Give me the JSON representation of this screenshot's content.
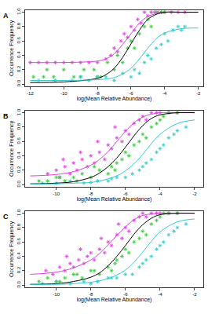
{
  "chart_data": [
    {
      "type": "scatter",
      "title": "A",
      "x_label": "log(Mean Relative Abundance)",
      "y_label": "Occurrence Frequency",
      "xlim": [
        -12.3,
        -1.7
      ],
      "ylim": [
        -0.03,
        1.03
      ],
      "xticks": [
        -12,
        -10,
        -8,
        -6,
        -4,
        -2
      ],
      "yticks": [
        {
          "value": 0,
          "label": "0.0"
        },
        0.2,
        0.4,
        0.6,
        0.8,
        {
          "value": 1,
          "label": "1.0"
        }
      ],
      "series": [
        {
          "type": "scatter",
          "color": "#e040e0",
          "marker": "asterisk",
          "x": [
            -12,
            -11.5,
            -11,
            -10.5,
            -10,
            -9.5,
            -9,
            -8.5,
            -8,
            -7.5,
            -7.2,
            -7,
            -6.8,
            -6.6,
            -6.4,
            -6.2,
            -6,
            -5.8,
            -5.6,
            -5.4,
            -5.2,
            -5,
            -4.8,
            -4.6,
            -4.4,
            -4.2,
            -4,
            -3.6,
            -3.2,
            -2.8
          ],
          "values": [
            0.3,
            0.3,
            0.3,
            0.3,
            0.3,
            0.3,
            0.3,
            0.3,
            0.3,
            0.35,
            0.4,
            0.5,
            0.45,
            0.6,
            0.7,
            0.65,
            0.8,
            0.75,
            0.9,
            0.85,
            1,
            0.95,
            1,
            1,
            1,
            1,
            1,
            1,
            1,
            1
          ]
        },
        {
          "type": "scatter",
          "color": "#33cc33",
          "marker": "asterisk",
          "x": [
            -11.8,
            -11.2,
            -10.6,
            -10,
            -9.4,
            -8.8,
            -8.2,
            -7.8,
            -7.4,
            -7,
            -6.8,
            -6.5,
            -6.2,
            -6,
            -5.8,
            -5.5,
            -5.2,
            -5,
            -4.8,
            -4.5,
            -4.2,
            -4,
            -11,
            -9,
            -8
          ],
          "values": [
            0.1,
            0.1,
            0.1,
            0.2,
            0.1,
            0.2,
            0.2,
            0.1,
            0.3,
            0.2,
            0.4,
            0.3,
            0.5,
            0.6,
            0.5,
            0.7,
            0.8,
            0.9,
            0.8,
            1,
            1,
            1,
            0.2,
            0.1,
            0.1
          ]
        },
        {
          "type": "scatter",
          "color": "#33cccc",
          "marker": "asterisk",
          "x": [
            -11.5,
            -10.5,
            -9.5,
            -8.5,
            -7.5,
            -7,
            -6.5,
            -6,
            -5.8,
            -5.5,
            -5.2,
            -5,
            -4.8,
            -4.5,
            -4.2,
            -4,
            -3.8,
            -3.5,
            -3.2,
            -3,
            -2.8,
            -8,
            -9
          ],
          "values": [
            0.05,
            0.05,
            0.05,
            0.05,
            0.1,
            0.05,
            0.15,
            0.1,
            0.2,
            0.15,
            0.3,
            0.4,
            0.35,
            0.5,
            0.55,
            0.7,
            0.6,
            0.75,
            0.8,
            0.75,
            0.8,
            0.1,
            0.1
          ]
        },
        {
          "type": "line",
          "color": "#e040e0",
          "line_style": "solid",
          "x": [
            -12,
            -10,
            -8,
            -7.5,
            -7,
            -6.5,
            -6,
            -5.5,
            -5,
            -4.5,
            -4,
            -3,
            -2
          ],
          "values": [
            0.3,
            0.3,
            0.32,
            0.35,
            0.42,
            0.55,
            0.7,
            0.85,
            0.94,
            0.98,
            1,
            1,
            1
          ]
        },
        {
          "type": "line",
          "color": "#000000",
          "line_style": "solid",
          "x": [
            -12,
            -10,
            -8,
            -7.5,
            -7,
            -6.5,
            -6,
            -5.5,
            -5,
            -4.5,
            -4,
            -3,
            -2
          ],
          "values": [
            0.02,
            0.03,
            0.08,
            0.13,
            0.22,
            0.37,
            0.56,
            0.75,
            0.9,
            0.97,
            1,
            1,
            1
          ]
        },
        {
          "type": "line",
          "color": "#33cccc",
          "line_style": "solid",
          "x": [
            -12,
            -10,
            -8,
            -7.5,
            -7,
            -6.5,
            -6,
            -5.5,
            -5,
            -4.5,
            -4,
            -3,
            -2
          ],
          "values": [
            0.05,
            0.05,
            0.06,
            0.07,
            0.09,
            0.14,
            0.22,
            0.35,
            0.5,
            0.63,
            0.71,
            0.77,
            0.78
          ]
        }
      ]
    },
    {
      "type": "scatter",
      "title": "B",
      "x_label": "log(Mean Relative Abundance)",
      "y_label": "Occurrence Frequency",
      "xlim": [
        -11.8,
        -1.5
      ],
      "ylim": [
        -0.03,
        1.03
      ],
      "xticks": [
        -10,
        -8,
        -6,
        -4,
        -2
      ],
      "yticks": [
        {
          "value": 0,
          "label": "0.0"
        },
        0.2,
        0.4,
        0.6,
        0.8,
        {
          "value": 1,
          "label": "1.0"
        }
      ],
      "series": [
        {
          "type": "scatter",
          "color": "#e040e0",
          "marker": "asterisk",
          "x": [
            -10.5,
            -10,
            -9.8,
            -9.5,
            -9.2,
            -9,
            -8.8,
            -8.5,
            -8.2,
            -8,
            -7.8,
            -7.5,
            -7.2,
            -7,
            -6.8,
            -6.5,
            -6.2,
            -6,
            -5.8,
            -5.5,
            -5.2,
            -5,
            -4.8,
            -4.5,
            -4.2,
            -4,
            -3.5,
            -3,
            -9.6,
            -8.6,
            -7.6,
            -6.6
          ],
          "values": [
            0.15,
            0.2,
            0.1,
            0.25,
            0.15,
            0.3,
            0.2,
            0.35,
            0.25,
            0.4,
            0.3,
            0.45,
            0.35,
            0.55,
            0.5,
            0.65,
            0.6,
            0.75,
            0.7,
            0.85,
            0.9,
            0.95,
            0.9,
            1,
            1,
            1,
            1,
            1,
            0.35,
            0.45,
            0.6,
            0.8
          ]
        },
        {
          "type": "scatter",
          "color": "#33cc33",
          "marker": "asterisk",
          "x": [
            -11,
            -10.5,
            -10,
            -9.5,
            -9,
            -8.5,
            -8,
            -7.5,
            -7,
            -6.8,
            -6.5,
            -6.2,
            -6,
            -5.8,
            -5.5,
            -5.2,
            -5,
            -4.8,
            -4.5,
            -4.2,
            -4,
            -3.8,
            -3.5,
            -3,
            -9.8,
            -8.8,
            -7.8,
            -6.6
          ],
          "values": [
            0.05,
            0.05,
            0.1,
            0.05,
            0.1,
            0.15,
            0.1,
            0.2,
            0.15,
            0.25,
            0.3,
            0.35,
            0.45,
            0.4,
            0.55,
            0.6,
            0.7,
            0.65,
            0.8,
            0.85,
            0.9,
            0.95,
            1,
            1,
            0.1,
            0.05,
            0.25,
            0.2
          ]
        },
        {
          "type": "scatter",
          "color": "#33cccc",
          "marker": "asterisk",
          "x": [
            -10.8,
            -10,
            -9.2,
            -8.4,
            -7.6,
            -7,
            -6.5,
            -6,
            -5.6,
            -5.2,
            -5,
            -4.8,
            -4.5,
            -4.2,
            -4,
            -3.8,
            -3.5,
            -3.2,
            -3,
            -2.5,
            -8,
            -6.8
          ],
          "values": [
            0.02,
            0.02,
            0.05,
            0.02,
            0.05,
            0.05,
            0.1,
            0.1,
            0.15,
            0.2,
            0.25,
            0.3,
            0.35,
            0.45,
            0.5,
            0.55,
            0.65,
            0.7,
            0.75,
            0.8,
            0.03,
            0.08
          ]
        },
        {
          "type": "line",
          "color": "#e040e0",
          "line_style": "solid",
          "x": [
            -11.5,
            -10,
            -9,
            -8,
            -7.5,
            -7,
            -6.5,
            -6,
            -5.5,
            -5,
            -4.5,
            -4,
            -3,
            -2
          ],
          "values": [
            0.12,
            0.14,
            0.18,
            0.27,
            0.35,
            0.46,
            0.6,
            0.74,
            0.86,
            0.94,
            0.98,
            1,
            1,
            1
          ]
        },
        {
          "type": "line",
          "color": "#000000",
          "line_style": "solid",
          "x": [
            -11.5,
            -10,
            -9,
            -8,
            -7.5,
            -7,
            -6.5,
            -6,
            -5.5,
            -5,
            -4.5,
            -4,
            -3,
            -2
          ],
          "values": [
            0.01,
            0.02,
            0.04,
            0.1,
            0.16,
            0.25,
            0.37,
            0.52,
            0.68,
            0.82,
            0.92,
            0.97,
            1,
            1
          ]
        },
        {
          "type": "line",
          "color": "#33cccc",
          "line_style": "solid",
          "x": [
            -11.5,
            -10,
            -9,
            -8,
            -7.5,
            -7,
            -6.5,
            -6,
            -5.5,
            -5,
            -4.5,
            -4,
            -3,
            -2
          ],
          "values": [
            0.01,
            0.01,
            0.02,
            0.03,
            0.05,
            0.08,
            0.12,
            0.19,
            0.29,
            0.42,
            0.57,
            0.7,
            0.85,
            0.9
          ]
        }
      ]
    },
    {
      "type": "scatter",
      "title": "C",
      "x_label": "log(Mean Relative Abundance)",
      "y_label": "Occurrence Frequency",
      "xlim": [
        -11.8,
        -1.5
      ],
      "ylim": [
        -0.03,
        1.03
      ],
      "xticks": [
        -10,
        -8,
        -6,
        -4,
        -2
      ],
      "yticks": [
        {
          "value": 0,
          "label": "0.0"
        },
        0.2,
        0.4,
        0.6,
        0.8,
        {
          "value": 1,
          "label": "1.0"
        }
      ],
      "series": [
        {
          "type": "scatter",
          "color": "#e040e0",
          "marker": "asterisk",
          "x": [
            -10.6,
            -10.2,
            -9.8,
            -9.5,
            -9.2,
            -9,
            -8.7,
            -8.4,
            -8.2,
            -8,
            -7.8,
            -7.5,
            -7.2,
            -7,
            -6.8,
            -6.5,
            -6.2,
            -6,
            -5.8,
            -5.5,
            -5.2,
            -5,
            -4.8,
            -4.5,
            -4.2,
            -4,
            -3.5,
            -3,
            -9.4,
            -8.6,
            -7.4,
            -6.4
          ],
          "values": [
            0.2,
            0.15,
            0.25,
            0.2,
            0.3,
            0.25,
            0.35,
            0.3,
            0.4,
            0.45,
            0.35,
            0.5,
            0.45,
            0.6,
            0.55,
            0.7,
            0.65,
            0.8,
            0.75,
            0.9,
            0.95,
            1,
            0.95,
            1,
            1,
            1,
            1,
            1,
            0.4,
            0.5,
            0.65,
            0.85
          ]
        },
        {
          "type": "scatter",
          "color": "#33cc33",
          "marker": "asterisk",
          "x": [
            -11,
            -10.5,
            -10,
            -9.5,
            -9,
            -8.5,
            -8,
            -7.5,
            -7,
            -6.8,
            -6.5,
            -6.2,
            -6,
            -5.8,
            -5.5,
            -5.2,
            -5,
            -4.8,
            -4.5,
            -4.2,
            -4,
            -3.8,
            -3.5,
            -3,
            -9.8,
            -8.8,
            -7.8,
            -6.6
          ],
          "values": [
            0.05,
            0.1,
            0.05,
            0.1,
            0.15,
            0.1,
            0.2,
            0.15,
            0.25,
            0.2,
            0.35,
            0.4,
            0.5,
            0.45,
            0.6,
            0.65,
            0.75,
            0.7,
            0.85,
            0.9,
            0.95,
            1,
            1,
            1,
            0.05,
            0.15,
            0.2,
            0.3
          ]
        },
        {
          "type": "scatter",
          "color": "#33cccc",
          "marker": "asterisk",
          "x": [
            -10.8,
            -10,
            -9.2,
            -8.4,
            -7.6,
            -7,
            -6.5,
            -6,
            -5.6,
            -5.2,
            -5,
            -4.8,
            -4.5,
            -4.2,
            -4,
            -3.8,
            -3.5,
            -3.2,
            -3,
            -2.5,
            -8,
            -6.8
          ],
          "values": [
            0.02,
            0.05,
            0.02,
            0.05,
            0.05,
            0.1,
            0.1,
            0.15,
            0.15,
            0.25,
            0.3,
            0.35,
            0.4,
            0.5,
            0.55,
            0.6,
            0.7,
            0.75,
            0.8,
            0.85,
            0.02,
            0.1
          ]
        },
        {
          "type": "line",
          "color": "#e040e0",
          "line_style": "solid",
          "x": [
            -11.5,
            -10,
            -9,
            -8,
            -7.5,
            -7,
            -6.5,
            -6,
            -5.5,
            -5,
            -4.5,
            -4,
            -3,
            -2
          ],
          "values": [
            0.15,
            0.18,
            0.24,
            0.35,
            0.44,
            0.56,
            0.69,
            0.81,
            0.91,
            0.97,
            0.99,
            1,
            1,
            1
          ]
        },
        {
          "type": "line",
          "color": "#000000",
          "line_style": "solid",
          "x": [
            -11.5,
            -10,
            -9,
            -8,
            -7.5,
            -7,
            -6.5,
            -6,
            -5.5,
            -5,
            -4.5,
            -4,
            -3,
            -2
          ],
          "values": [
            0.01,
            0.02,
            0.05,
            0.11,
            0.17,
            0.27,
            0.4,
            0.55,
            0.71,
            0.84,
            0.93,
            0.98,
            1,
            1
          ]
        },
        {
          "type": "line",
          "color": "#33cccc",
          "line_style": "solid",
          "x": [
            -11.5,
            -10,
            -9,
            -8,
            -7.5,
            -7,
            -6.5,
            -6,
            -5.5,
            -5,
            -4.5,
            -4,
            -3,
            -2
          ],
          "values": [
            0.01,
            0.01,
            0.02,
            0.04,
            0.06,
            0.09,
            0.14,
            0.21,
            0.32,
            0.46,
            0.61,
            0.74,
            0.88,
            0.92
          ]
        }
      ]
    }
  ]
}
